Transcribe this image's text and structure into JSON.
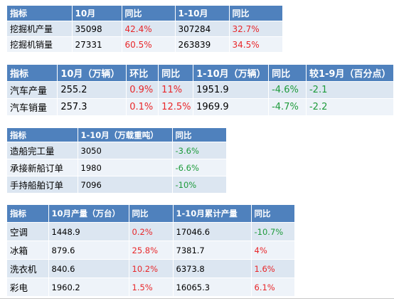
{
  "tables": [
    {
      "headers": [
        "指标",
        "10月",
        "同比",
        "1-10月",
        "同比"
      ],
      "rows": [
        [
          "挖掘机产量",
          "35098",
          "42.4%",
          "307284",
          "32.7%"
        ],
        [
          "挖掘机销量",
          "27331",
          "60.5%",
          "263839",
          "34.5%"
        ]
      ]
    },
    {
      "headers": [
        "指标",
        "10月（万辆）",
        "环比",
        "同比",
        "1-10月（万辆）",
        "同比",
        "较1-9月（百分点）"
      ],
      "rows": [
        [
          "汽车产量",
          "255.2",
          "0.9%",
          "11%",
          "1951.9",
          "-4.6%",
          "-2.1"
        ],
        [
          "汽车销量",
          "257.3",
          "0.1%",
          "12.5%",
          "1969.9",
          "-4.7%",
          "-2.2"
        ]
      ]
    },
    {
      "headers": [
        "指标",
        "1-10月（万载重吨）",
        "同比"
      ],
      "rows": [
        [
          "造船完工量",
          "3050",
          "-3.6%"
        ],
        [
          "承接新船订单",
          "1980",
          "-6.6%"
        ],
        [
          "手持船舶订单",
          "7096",
          "-10%"
        ]
      ]
    },
    {
      "headers": [
        "指标",
        "10月产量（万台）",
        "同比",
        "1-10月累计产量",
        "同比"
      ],
      "rows": [
        [
          "空调",
          "1448.9",
          "0.2%",
          "17046.6",
          "-10.7%"
        ],
        [
          "冰箱",
          "879.6",
          "25.8%",
          "7381.7",
          "4%"
        ],
        [
          "洗衣机",
          "840.6",
          "10.2%",
          "6373.8",
          "1.6%"
        ],
        [
          "彩电",
          "1960.2",
          "1.5%",
          "16065.3",
          "6.1%"
        ]
      ]
    }
  ],
  "colors": {
    "header_bg": "#4f81bd",
    "row_bg_odd": "#dce6f1",
    "row_bg_even": "#eef3f9",
    "positive_text": "#e8272a",
    "negative_text": "#1e9b3c"
  }
}
